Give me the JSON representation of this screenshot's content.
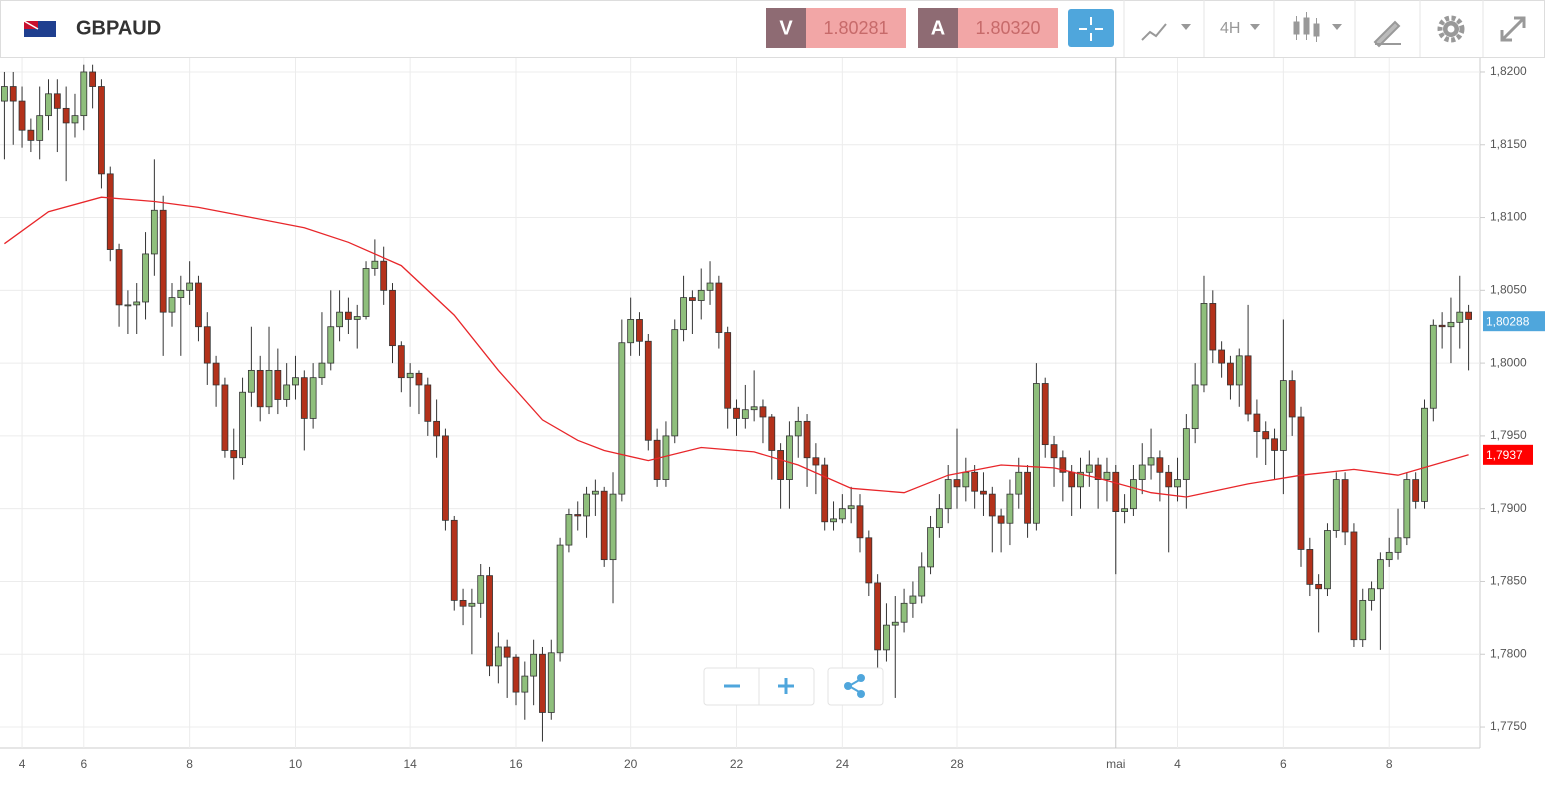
{
  "toolbar": {
    "symbol": "GBPAUD",
    "sell": {
      "label": "V",
      "price": "1.80281"
    },
    "buy": {
      "label": "A",
      "price": "1.80320"
    },
    "timeframe": "4H"
  },
  "chart_data": {
    "type": "candlestick",
    "categories": [
      null,
      null,
      "4",
      null,
      null,
      null,
      null,
      null,
      null,
      "6",
      null,
      null,
      null,
      null,
      null,
      null,
      null,
      null,
      null,
      null,
      null,
      "8",
      null,
      null,
      null,
      null,
      null,
      null,
      null,
      null,
      null,
      null,
      null,
      "10",
      null,
      null,
      null,
      null,
      null,
      null,
      null,
      null,
      null,
      null,
      null,
      null,
      "14",
      null,
      null,
      null,
      null,
      null,
      null,
      null,
      null,
      null,
      null,
      null,
      "16",
      null,
      null,
      null,
      null,
      null,
      null,
      null,
      null,
      null,
      null,
      null,
      null,
      "20",
      null,
      null,
      null,
      null,
      null,
      null,
      null,
      null,
      null,
      null,
      null,
      "22",
      null,
      null,
      null,
      null,
      null,
      null,
      null,
      null,
      null,
      null,
      null,
      "24",
      null,
      null,
      null,
      null,
      null,
      null,
      null,
      null,
      null,
      null,
      null,
      null,
      "28",
      null,
      null,
      null,
      null,
      null,
      null,
      null,
      null,
      null,
      null,
      null,
      null,
      null,
      null,
      null,
      null,
      null,
      "mai",
      null,
      null,
      null,
      null,
      null,
      null,
      "4",
      null,
      null,
      null,
      null,
      null,
      null,
      null,
      null,
      null,
      null,
      null,
      "6",
      null,
      null,
      null,
      null,
      null,
      null,
      null,
      null,
      null,
      null,
      null,
      "8",
      null,
      null,
      null,
      null,
      null,
      null,
      null,
      null,
      null
    ],
    "open": [
      1.818,
      1.819,
      1.818,
      1.816,
      1.8153,
      1.817,
      1.8185,
      1.8175,
      1.8165,
      1.817,
      1.82,
      1.819,
      1.813,
      1.8078,
      1.804,
      1.804,
      1.8042,
      1.8075,
      1.8105,
      1.8035,
      1.8045,
      1.805,
      1.8055,
      1.8025,
      1.8,
      1.7985,
      1.794,
      1.7935,
      1.798,
      1.7995,
      1.797,
      1.7995,
      1.7975,
      1.7985,
      1.799,
      1.7962,
      1.799,
      1.8,
      1.8025,
      1.8035,
      1.803,
      1.8032,
      1.8065,
      1.807,
      1.805,
      1.8012,
      1.799,
      1.7993,
      1.7985,
      1.796,
      1.795,
      1.7892,
      1.7837,
      1.7833,
      1.7835,
      1.7854,
      1.7792,
      1.7805,
      1.7798,
      1.7774,
      1.7785,
      1.78,
      1.776,
      1.7801,
      1.7875,
      1.7896,
      1.7895,
      1.791,
      1.7912,
      1.7865,
      1.791,
      1.8014,
      1.803,
      1.8015,
      1.7947,
      1.792,
      1.795,
      1.8023,
      1.8045,
      1.8043,
      1.805,
      1.8055,
      1.8021,
      1.7969,
      1.7962,
      1.7968,
      1.797,
      1.7963,
      1.794,
      1.792,
      1.795,
      1.796,
      1.7935,
      1.793,
      1.7891,
      1.7893,
      1.79,
      1.7902,
      1.788,
      1.7849,
      1.7803,
      1.782,
      1.7822,
      1.7835,
      1.784,
      1.786,
      1.7887,
      1.79,
      1.792,
      1.7915,
      1.7925,
      1.7912,
      1.791,
      1.7895,
      1.789,
      1.791,
      1.7925,
      1.789,
      1.7986,
      1.7944,
      1.7935,
      1.7925,
      1.7915,
      1.7925,
      1.793,
      1.792,
      1.7925,
      1.7898,
      1.79,
      1.792,
      1.793,
      1.7935,
      1.7925,
      1.7915,
      1.792,
      1.7955,
      1.7985,
      1.8041,
      1.8009,
      1.8,
      1.7985,
      1.8005,
      1.7965,
      1.7953,
      1.7948,
      1.794,
      1.7988,
      1.7963,
      1.7872,
      1.7848,
      1.7845,
      1.7885,
      1.792,
      1.7884,
      1.781,
      1.7837,
      1.7845,
      1.7865,
      1.787,
      1.788,
      1.792,
      1.7905,
      1.7969,
      1.8026,
      1.8025,
      1.8028,
      1.8035
    ],
    "high": [
      1.82,
      1.82,
      1.819,
      1.8168,
      1.819,
      1.8195,
      1.8195,
      1.819,
      1.8185,
      1.8205,
      1.8205,
      1.8195,
      1.8135,
      1.8082,
      1.805,
      1.8055,
      1.809,
      1.814,
      1.8115,
      1.8055,
      1.806,
      1.807,
      1.806,
      1.8035,
      1.8005,
      1.799,
      1.7955,
      1.799,
      1.8025,
      1.8005,
      1.8025,
      1.801,
      1.8,
      1.8005,
      1.7995,
      1.8,
      1.8035,
      1.805,
      1.805,
      1.8045,
      1.804,
      1.807,
      1.8085,
      1.808,
      1.8055,
      1.8015,
      1.8,
      1.7995,
      1.799,
      1.7975,
      1.7955,
      1.7895,
      1.7845,
      1.7845,
      1.7862,
      1.786,
      1.7815,
      1.781,
      1.78,
      1.7795,
      1.781,
      1.7805,
      1.781,
      1.788,
      1.79,
      1.7905,
      1.7915,
      1.792,
      1.7915,
      1.7925,
      1.803,
      1.8045,
      1.8035,
      1.802,
      1.7955,
      1.796,
      1.803,
      1.806,
      1.805,
      1.8065,
      1.807,
      1.806,
      1.8025,
      1.7975,
      1.7985,
      1.7995,
      1.7975,
      1.7965,
      1.7945,
      1.796,
      1.797,
      1.7965,
      1.7945,
      1.7935,
      1.7905,
      1.791,
      1.7915,
      1.791,
      1.7885,
      1.7855,
      1.7835,
      1.784,
      1.7845,
      1.785,
      1.787,
      1.7895,
      1.791,
      1.793,
      1.7955,
      1.7935,
      1.793,
      1.7925,
      1.7915,
      1.79,
      1.792,
      1.7935,
      1.793,
      1.8,
      1.799,
      1.795,
      1.794,
      1.793,
      1.7935,
      1.794,
      1.7935,
      1.7935,
      1.793,
      1.791,
      1.793,
      1.7945,
      1.7955,
      1.794,
      1.793,
      1.7935,
      1.7965,
      1.8,
      1.806,
      1.805,
      1.8015,
      1.8005,
      1.801,
      1.804,
      1.7975,
      1.796,
      1.7955,
      1.803,
      1.7995,
      1.797,
      1.788,
      1.7855,
      1.789,
      1.7925,
      1.7925,
      1.789,
      1.7845,
      1.785,
      1.787,
      1.788,
      1.79,
      1.7925,
      1.7925,
      1.7975,
      1.803,
      1.8035,
      1.8045,
      1.806,
      1.804
    ],
    "low": [
      1.814,
      1.815,
      1.8148,
      1.8145,
      1.814,
      1.816,
      1.8145,
      1.8125,
      1.8155,
      1.816,
      1.8175,
      1.812,
      1.807,
      1.8025,
      1.802,
      1.802,
      1.803,
      1.806,
      1.8005,
      1.8025,
      1.8005,
      1.804,
      1.8015,
      1.7985,
      1.797,
      1.7935,
      1.792,
      1.793,
      1.797,
      1.796,
      1.7965,
      1.7965,
      1.797,
      1.7975,
      1.794,
      1.7955,
      1.7985,
      1.7995,
      1.8015,
      1.802,
      1.801,
      1.803,
      1.806,
      1.804,
      1.8,
      1.798,
      1.797,
      1.7965,
      1.795,
      1.7935,
      1.7885,
      1.783,
      1.782,
      1.78,
      1.7825,
      1.7785,
      1.778,
      1.777,
      1.7765,
      1.7755,
      1.7765,
      1.774,
      1.7755,
      1.7795,
      1.787,
      1.7885,
      1.788,
      1.7895,
      1.786,
      1.7835,
      1.7905,
      1.8005,
      1.8005,
      1.794,
      1.7915,
      1.7915,
      1.7945,
      1.8015,
      1.802,
      1.803,
      1.804,
      1.801,
      1.7955,
      1.795,
      1.7955,
      1.796,
      1.7945,
      1.792,
      1.79,
      1.79,
      1.7935,
      1.7915,
      1.791,
      1.7885,
      1.7885,
      1.789,
      1.789,
      1.787,
      1.784,
      1.779,
      1.7795,
      1.777,
      1.7815,
      1.7825,
      1.7835,
      1.7855,
      1.788,
      1.789,
      1.79,
      1.7905,
      1.79,
      1.7895,
      1.787,
      1.787,
      1.7875,
      1.79,
      1.788,
      1.7885,
      1.7935,
      1.7915,
      1.7905,
      1.7895,
      1.79,
      1.7915,
      1.79,
      1.7905,
      1.7855,
      1.789,
      1.7895,
      1.791,
      1.792,
      1.7905,
      1.787,
      1.7905,
      1.79,
      1.7945,
      1.798,
      1.8,
      1.799,
      1.7975,
      1.797,
      1.796,
      1.7935,
      1.793,
      1.792,
      1.791,
      1.795,
      1.786,
      1.784,
      1.7815,
      1.784,
      1.788,
      1.7875,
      1.7805,
      1.7805,
      1.783,
      1.7803,
      1.786,
      1.7865,
      1.7875,
      1.79,
      1.79,
      1.796,
      1.801,
      1.8,
      1.801,
      1.7995
    ],
    "close": [
      1.819,
      1.818,
      1.816,
      1.8153,
      1.817,
      1.8185,
      1.8175,
      1.8165,
      1.817,
      1.82,
      1.819,
      1.813,
      1.8078,
      1.804,
      1.804,
      1.8042,
      1.8075,
      1.8105,
      1.8035,
      1.8045,
      1.805,
      1.8055,
      1.8025,
      1.8,
      1.7985,
      1.794,
      1.7935,
      1.798,
      1.7995,
      1.797,
      1.7995,
      1.7975,
      1.7985,
      1.799,
      1.7962,
      1.799,
      1.8,
      1.8025,
      1.8035,
      1.803,
      1.8032,
      1.8065,
      1.807,
      1.805,
      1.8012,
      1.799,
      1.7993,
      1.7985,
      1.796,
      1.795,
      1.7892,
      1.7837,
      1.7833,
      1.7835,
      1.7854,
      1.7792,
      1.7805,
      1.7798,
      1.7774,
      1.7785,
      1.78,
      1.776,
      1.7801,
      1.7875,
      1.7896,
      1.7895,
      1.791,
      1.7912,
      1.7865,
      1.791,
      1.8014,
      1.803,
      1.8015,
      1.7947,
      1.792,
      1.795,
      1.8023,
      1.8045,
      1.8043,
      1.805,
      1.8055,
      1.8021,
      1.7969,
      1.7962,
      1.7968,
      1.797,
      1.7963,
      1.794,
      1.792,
      1.795,
      1.796,
      1.7935,
      1.793,
      1.7891,
      1.7893,
      1.79,
      1.7902,
      1.788,
      1.7849,
      1.7803,
      1.782,
      1.7822,
      1.7835,
      1.784,
      1.786,
      1.7887,
      1.79,
      1.792,
      1.7915,
      1.7925,
      1.7912,
      1.791,
      1.7895,
      1.789,
      1.791,
      1.7925,
      1.789,
      1.7986,
      1.7944,
      1.7935,
      1.7925,
      1.7915,
      1.7925,
      1.793,
      1.792,
      1.7925,
      1.7898,
      1.79,
      1.792,
      1.793,
      1.7935,
      1.7925,
      1.7915,
      1.792,
      1.7955,
      1.7985,
      1.8041,
      1.8009,
      1.8,
      1.7985,
      1.8005,
      1.7965,
      1.7953,
      1.7948,
      1.794,
      1.7988,
      1.7963,
      1.7872,
      1.7848,
      1.7845,
      1.7885,
      1.792,
      1.7884,
      1.781,
      1.7837,
      1.7845,
      1.7865,
      1.787,
      1.788,
      1.792,
      1.7905,
      1.7969,
      1.8026,
      1.8025,
      1.8028,
      1.8035,
      1.803
    ],
    "up_color": "#8fbf7c",
    "down_color": "#b3311a",
    "overlay": {
      "color": "#e8262a",
      "x": [
        0,
        5,
        11,
        17,
        22,
        28,
        34,
        39,
        45,
        51,
        56,
        61,
        65,
        68,
        73,
        79,
        85,
        90,
        96,
        102,
        107,
        113,
        119,
        124,
        130,
        134,
        141,
        147,
        153,
        158,
        166
      ],
      "values": [
        1.8082,
        1.8104,
        1.8114,
        1.8111,
        1.8107,
        1.81,
        1.8093,
        1.8083,
        1.8067,
        1.8033,
        1.7995,
        1.7961,
        1.7947,
        1.794,
        1.7933,
        1.7942,
        1.7939,
        1.793,
        1.7914,
        1.7911,
        1.7923,
        1.793,
        1.7928,
        1.7921,
        1.7911,
        1.7908,
        1.7917,
        1.7923,
        1.7927,
        1.7923,
        1.7937
      ]
    },
    "last_price": {
      "value": 1.80288,
      "label": "1,80288",
      "color": "#4fa6dc"
    },
    "overlay_last": {
      "value": 1.7937,
      "label": "1,7937",
      "color": "#ff0000"
    },
    "ylim": [
      1.77356,
      1.82096
    ],
    "yticks": [
      {
        "value": 1.775,
        "label": "1,7750"
      },
      {
        "value": 1.78,
        "label": "1,7800"
      },
      {
        "value": 1.785,
        "label": "1,7850"
      },
      {
        "value": 1.79,
        "label": "1,7900"
      },
      {
        "value": 1.795,
        "label": "1,7950"
      },
      {
        "value": 1.8,
        "label": "1,8000"
      },
      {
        "value": 1.805,
        "label": "1,8050"
      },
      {
        "value": 1.81,
        "label": "1,8100"
      },
      {
        "value": 1.815,
        "label": "1,8150"
      },
      {
        "value": 1.82,
        "label": "1,8200"
      }
    ],
    "grid": true
  }
}
